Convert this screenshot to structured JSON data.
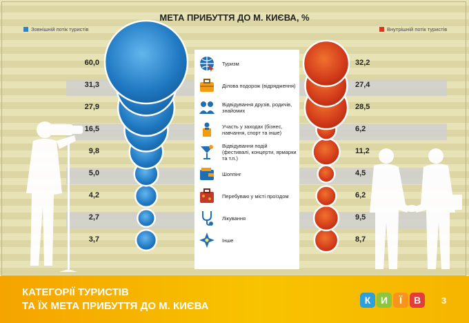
{
  "chart_data": {
    "type": "bubble",
    "title": "МЕТА ПРИБУТТЯ ДО М. КИЄВА, %",
    "series": [
      {
        "name": "Зовнішній потік туристів",
        "color": "#2a83c8",
        "values": [
          60.0,
          31.3,
          27.9,
          16.5,
          9.8,
          5.0,
          4.2,
          2.7,
          3.7
        ],
        "labels": [
          "60,0",
          "31,3",
          "27,9",
          "16,5",
          "9,8",
          "5,0",
          "4,2",
          "2,7",
          "3,7"
        ]
      },
      {
        "name": "Внутрішній потік туристів",
        "color": "#d43a1e",
        "values": [
          32.2,
          27.4,
          28.5,
          6.2,
          11.2,
          4.5,
          6.2,
          9.5,
          8.7
        ],
        "labels": [
          "32,2",
          "27,4",
          "28,5",
          "6,2",
          "11,2",
          "4,5",
          "6,2",
          "9,5",
          "8,7"
        ]
      }
    ],
    "categories": [
      {
        "label": "Туризм",
        "icon": "globe-icon"
      },
      {
        "label": "Ділова подорож (відрядження)",
        "icon": "briefcase-icon"
      },
      {
        "label": "Відвідування друзів, родичів, знайомих",
        "icon": "people-icon"
      },
      {
        "label": "Участь у заходах (бізнес, навчання, спорт та інше)",
        "icon": "speaker-icon"
      },
      {
        "label": "Відвідування подій (фестивалі, концерти, ярмарки та т.п.)",
        "icon": "cocktail-icon"
      },
      {
        "label": "Шоппінг",
        "icon": "wallet-icon"
      },
      {
        "label": "Перебуваю у місті проїздом",
        "icon": "suitcase-icon"
      },
      {
        "label": "Лікування",
        "icon": "stethoscope-icon"
      },
      {
        "label": "Інше",
        "icon": "star-icon"
      }
    ],
    "legend": "top"
  },
  "footer": {
    "title_line1": "КАТЕГОРІЇ ТУРИСТІВ",
    "title_line2": "ТА ЇХ МЕТА ПРИБУТТЯ ДО М. КИЄВА",
    "logo_letters": [
      "К",
      "И",
      "Ї",
      "В"
    ],
    "logo_colors": [
      "#2e9fd8",
      "#8cc63f",
      "#f7941d",
      "#e23c3c"
    ],
    "page_number": "3"
  }
}
